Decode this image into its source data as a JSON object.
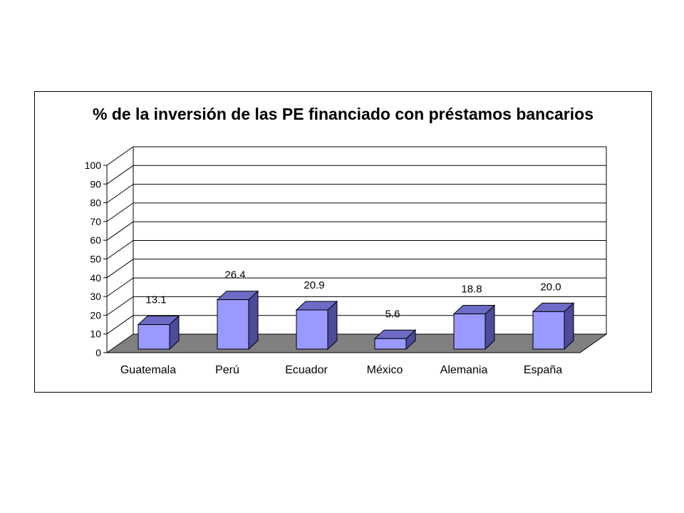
{
  "chart_data": {
    "type": "bar",
    "title": "% de la inversión de las PE financiado con préstamos bancarios",
    "categories": [
      "Guatemala",
      "Perú",
      "Ecuador",
      "México",
      "Alemania",
      "España"
    ],
    "values": [
      13.1,
      26.4,
      20.9,
      5.6,
      18.8,
      20.0
    ],
    "data_labels": [
      "13.1",
      "26.4",
      "20.9",
      "5.6",
      "18.8",
      "20.0"
    ],
    "yticks": [
      0,
      10,
      20,
      30,
      40,
      50,
      60,
      70,
      80,
      90,
      100
    ],
    "ylim": [
      0,
      100
    ],
    "xlabel": "",
    "ylabel": "",
    "grid": true,
    "style": "3d-column",
    "colors": {
      "bar_front": "#9999ff",
      "bar_top": "#6c6cc6",
      "bar_side": "#4c4c9a",
      "floor": "#808080",
      "axis": "#000000",
      "gridline": "#000000"
    }
  }
}
